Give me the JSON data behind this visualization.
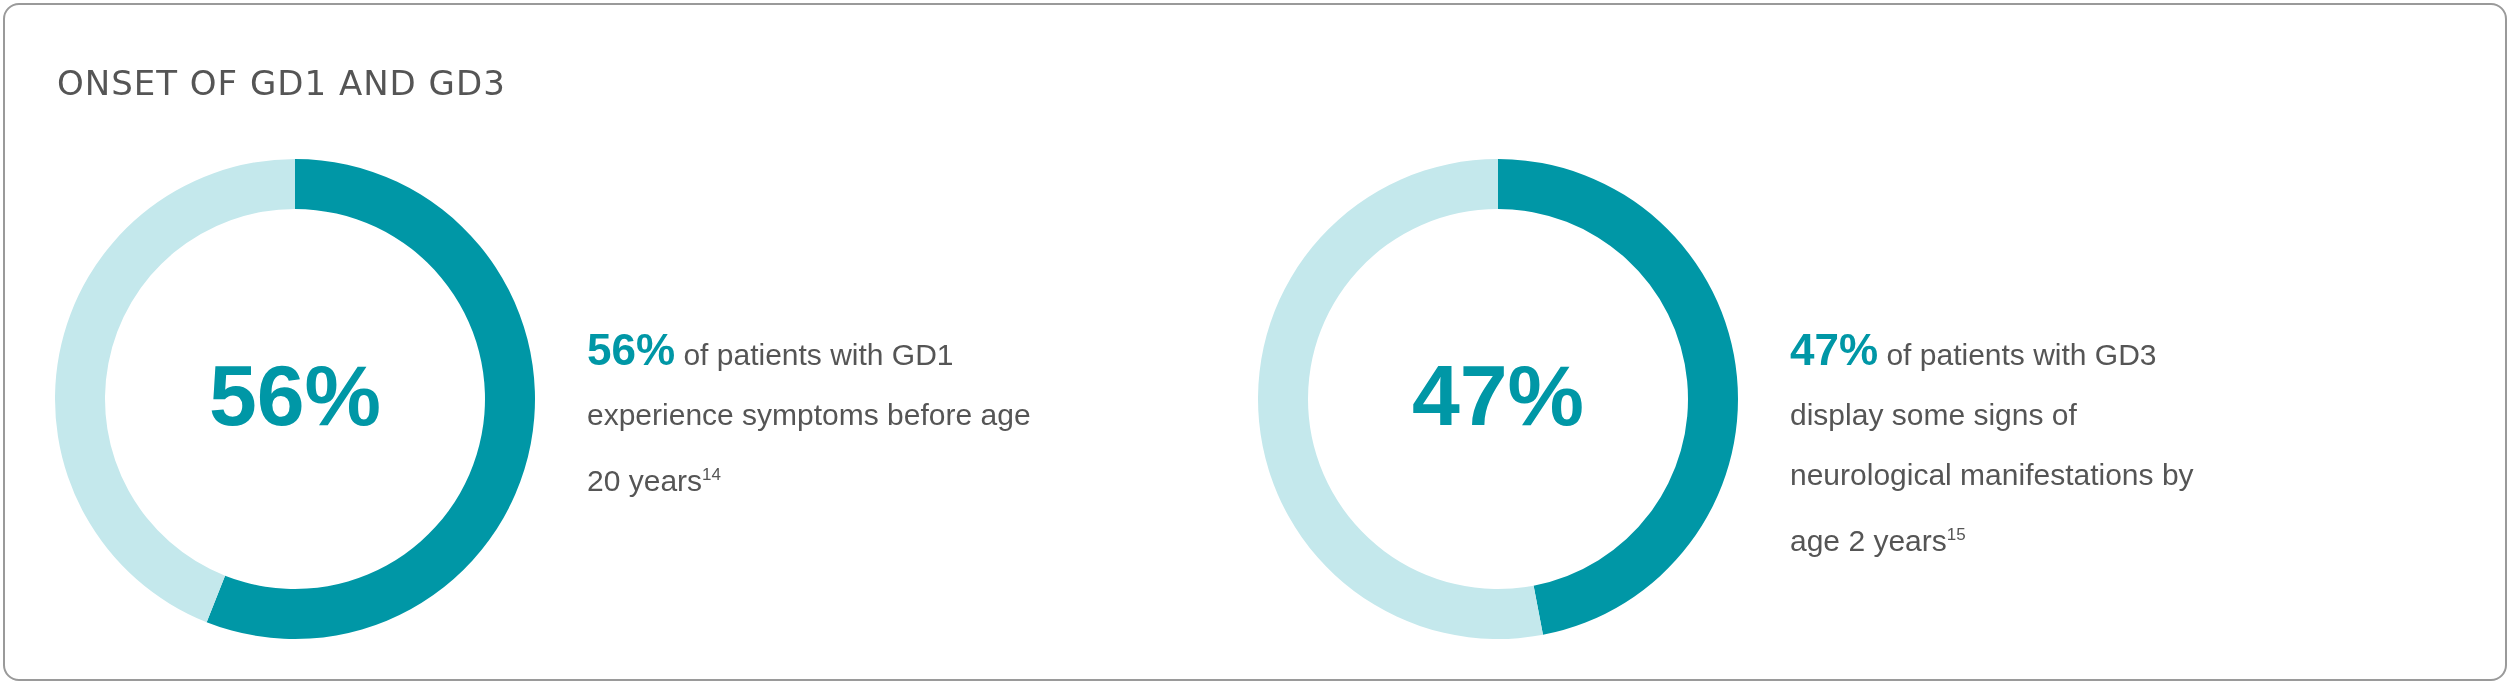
{
  "chart_data": [
    {
      "type": "donut",
      "title": "ONSET OF GD1 AND GD3",
      "categories": [
        null,
        null
      ],
      "values": [
        56,
        44
      ],
      "colors": [
        "#0097a6",
        "#c4e8ec"
      ],
      "value_labels": [
        "56%",
        null
      ],
      "annotations": [
        "56% of patients with GD1 experience symptoms before age 20 years$^{14}$"
      ]
    },
    {
      "type": "donut",
      "categories": [
        null,
        null
      ],
      "values": [
        47,
        53
      ],
      "colors": [
        "#0097a6",
        "#c4e8ec"
      ],
      "value_labels": [
        "47%",
        null
      ],
      "annotations": [
        "47% of patients with GD3 display some signs of neurological manifestations by age 2 years$^{15}$"
      ]
    }
  ]
}
